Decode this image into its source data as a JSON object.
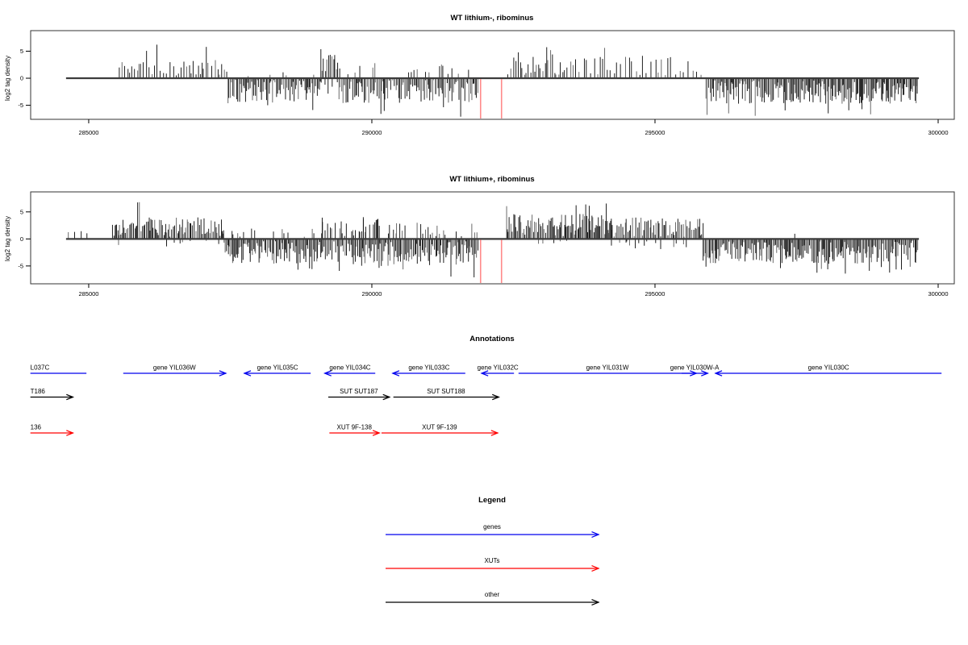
{
  "chart_data": [
    {
      "type": "bar",
      "title": "WT lithium-, ribominus",
      "ylabel": "log2 tag density",
      "yticks": [
        5,
        0,
        -5
      ],
      "ylim": [
        -7.6,
        8.8
      ],
      "xticks": [
        285000,
        290000,
        295000,
        300000
      ],
      "xlim": [
        283975,
        300285
      ],
      "grid": "off",
      "baseline_range": [
        284600,
        299660
      ],
      "red_guides": [
        291920,
        292290
      ],
      "red_guide_color": "#ff8a8a",
      "bar_color": "#1e1e1e",
      "bar_color_alt": "#6a6a6a",
      "density_regions": [
        {
          "from": 285540,
          "to": 287440,
          "dir": "up",
          "spacing": 44,
          "amp": [
            0.5,
            3.4
          ],
          "tall_prob": 0.05,
          "tall_amp": 5.8
        },
        {
          "from": 287460,
          "to": 289100,
          "dir": "down",
          "spacing": 23,
          "amp": [
            0.3,
            4.4
          ],
          "tall_prob": 0.04,
          "tall_amp": 5.2,
          "opp_prob": 0.05,
          "opp_amp": [
            0.3,
            1.2
          ]
        },
        {
          "from": 289100,
          "to": 289420,
          "dir": "up",
          "spacing": 30,
          "amp": [
            0.8,
            5.5
          ],
          "opp_prob": 0.5,
          "opp_amp": [
            0.5,
            3.0
          ]
        },
        {
          "from": 289420,
          "to": 291880,
          "dir": "down",
          "spacing": 23,
          "amp": [
            0.3,
            4.6
          ],
          "tall_prob": 0.04,
          "tall_amp": 6.2,
          "opp_prob": 0.2,
          "opp_amp": [
            0.4,
            2.8
          ]
        },
        {
          "from": 292400,
          "to": 293400,
          "dir": "up",
          "spacing": 36,
          "amp": [
            0.5,
            4.4
          ],
          "tall_prob": 0.04,
          "tall_amp": 5.5
        },
        {
          "from": 293400,
          "to": 295870,
          "dir": "up",
          "spacing": 62,
          "amp": [
            0.5,
            4.2
          ],
          "tall_prob": 0.05,
          "tall_amp": 5.0
        },
        {
          "from": 295900,
          "to": 299640,
          "dir": "down",
          "spacing": 19,
          "amp": [
            0.3,
            4.8
          ],
          "tall_prob": 0.05,
          "tall_amp": 6.4
        }
      ]
    },
    {
      "type": "bar",
      "title": "WT lithium+, ribominus",
      "ylabel": "log2 tag density",
      "yticks": [
        5,
        0,
        -5
      ],
      "ylim": [
        -8.3,
        8.7
      ],
      "xticks": [
        285000,
        290000,
        295000,
        300000
      ],
      "xlim": [
        283975,
        300285
      ],
      "grid": "off",
      "baseline_range": [
        284600,
        299660
      ],
      "red_guides": [
        291920,
        292290
      ],
      "red_guide_color": "#ff8a8a",
      "bar_color": "#1e1e1e",
      "bar_color_alt": "#6a6a6a",
      "density_regions": [
        {
          "from": 284640,
          "to": 285030,
          "dir": "up",
          "spacing": 140,
          "amp": [
            1.0,
            2.2
          ]
        },
        {
          "from": 285420,
          "to": 287390,
          "dir": "up",
          "spacing": 22,
          "amp": [
            0.4,
            4.0
          ],
          "tall_prob": 0.03,
          "tall_amp": 6.6,
          "opp_prob": 0.06,
          "opp_amp": [
            0.3,
            1.4
          ]
        },
        {
          "from": 287390,
          "to": 289100,
          "dir": "down",
          "spacing": 20,
          "amp": [
            0.4,
            4.6
          ],
          "tall_prob": 0.03,
          "tall_amp": 5.4,
          "opp_prob": 0.18,
          "opp_amp": [
            0.4,
            2.0
          ]
        },
        {
          "from": 289100,
          "to": 290130,
          "dir": "down",
          "spacing": 22,
          "amp": [
            0.4,
            4.6
          ],
          "tall_prob": 0.04,
          "tall_amp": 5.4,
          "opp_prob": 0.55,
          "opp_amp": [
            0.5,
            4.2
          ]
        },
        {
          "from": 290130,
          "to": 291880,
          "dir": "down",
          "spacing": 20,
          "amp": [
            0.4,
            5.0
          ],
          "tall_prob": 0.04,
          "tall_amp": 6.6,
          "opp_prob": 0.3,
          "opp_amp": [
            0.4,
            3.0
          ]
        },
        {
          "from": 292380,
          "to": 294230,
          "dir": "up",
          "spacing": 21,
          "amp": [
            0.4,
            4.6
          ],
          "tall_prob": 0.04,
          "tall_amp": 6.0,
          "opp_prob": 0.04,
          "opp_amp": [
            0.3,
            1.0
          ]
        },
        {
          "from": 294230,
          "to": 295850,
          "dir": "up",
          "spacing": 24,
          "amp": [
            0.4,
            4.0
          ],
          "opp_prob": 0.25,
          "opp_amp": [
            0.3,
            2.2
          ]
        },
        {
          "from": 295850,
          "to": 299640,
          "dir": "down",
          "spacing": 19,
          "amp": [
            0.4,
            4.6
          ],
          "tall_prob": 0.04,
          "tall_amp": 5.6,
          "opp_prob": 0.02,
          "opp_amp": [
            0.4,
            1.0
          ]
        }
      ]
    }
  ],
  "annotations": {
    "title": "Annotations",
    "tracks": [
      {
        "name": "genes",
        "color": "#0000ee",
        "items": [
          {
            "label": "L037C",
            "start": 283970,
            "end": 284960,
            "strand": "none",
            "label_align": "left"
          },
          {
            "label": "gene YIL036W",
            "start": 285610,
            "end": 287420,
            "strand": "+"
          },
          {
            "label": "gene YIL035C",
            "start": 287750,
            "end": 288920,
            "strand": "-"
          },
          {
            "label": "gene YIL034C",
            "start": 289170,
            "end": 290060,
            "strand": "-"
          },
          {
            "label": "gene YIL033C",
            "start": 290370,
            "end": 291650,
            "strand": "-"
          },
          {
            "label": "gene YIL032C",
            "start": 291940,
            "end": 292510,
            "strand": "-"
          },
          {
            "label": "gene YIL031W",
            "start": 292590,
            "end": 295730,
            "strand": "+"
          },
          {
            "label": "gene YIL030W-A",
            "start": 295470,
            "end": 295930,
            "strand": "+"
          },
          {
            "label": "gene YIL030C",
            "start": 296070,
            "end": 300060,
            "strand": "-"
          }
        ]
      },
      {
        "name": "other",
        "color": "#000000",
        "items": [
          {
            "label": "T186",
            "start": 283970,
            "end": 284720,
            "strand": "+",
            "label_align": "left"
          },
          {
            "label": "SUT SUT187",
            "start": 289230,
            "end": 290310,
            "strand": "+"
          },
          {
            "label": "SUT SUT188",
            "start": 290380,
            "end": 292240,
            "strand": "+"
          }
        ]
      },
      {
        "name": "xuts",
        "color": "#ff0000",
        "items": [
          {
            "label": "136",
            "start": 283970,
            "end": 284720,
            "strand": "+",
            "label_align": "left"
          },
          {
            "label": "XUT 9F-138",
            "start": 289250,
            "end": 290130,
            "strand": "+"
          },
          {
            "label": "XUT 9F-139",
            "start": 290170,
            "end": 292220,
            "strand": "+"
          }
        ]
      }
    ]
  },
  "legend": {
    "title": "Legend",
    "items": [
      {
        "label": "genes",
        "color": "#0000ee"
      },
      {
        "label": "XUTs",
        "color": "#ff0000"
      },
      {
        "label": "other",
        "color": "#000000"
      }
    ]
  }
}
